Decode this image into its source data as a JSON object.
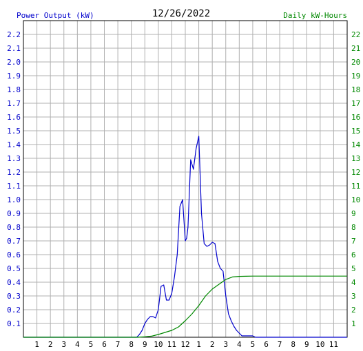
{
  "chart_data": {
    "type": "line",
    "title": "12/26/2022",
    "left_axis_label": "Power Output (kW)",
    "right_axis_label": "Daily kW-Hours",
    "x_tick_labels": [
      "1",
      "2",
      "3",
      "4",
      "5",
      "6",
      "7",
      "8",
      "9",
      "10",
      "11",
      "12",
      "1",
      "2",
      "3",
      "4",
      "5",
      "6",
      "7",
      "8",
      "9",
      "10",
      "11"
    ],
    "x_range_hours": [
      0,
      24
    ],
    "left_ticks": [
      "0.1",
      "0.2",
      "0.3",
      "0.4",
      "0.5",
      "0.6",
      "0.7",
      "0.8",
      "0.9",
      "1.0",
      "1.1",
      "1.2",
      "1.3",
      "1.4",
      "1.5",
      "1.6",
      "1.7",
      "1.8",
      "1.9",
      "2.0",
      "2.1",
      "2.2"
    ],
    "left_range": [
      0,
      2.3
    ],
    "right_ticks": [
      "1",
      "2",
      "3",
      "4",
      "5",
      "6",
      "7",
      "8",
      "9",
      "10",
      "11",
      "12",
      "13",
      "14",
      "15",
      "16",
      "17",
      "18",
      "19",
      "20",
      "21",
      "22"
    ],
    "right_range": [
      0,
      23
    ],
    "grid": true,
    "colors": {
      "power": "#0000cc",
      "energy": "#008800",
      "left_axis": "#0000cc",
      "right_axis": "#008800",
      "grid": "#b0b0b0"
    },
    "series": [
      {
        "name": "Power Output (kW)",
        "axis": "left",
        "x": [
          0,
          8.4,
          8.6,
          8.8,
          9.0,
          9.2,
          9.4,
          9.6,
          9.8,
          10.0,
          10.2,
          10.4,
          10.6,
          10.8,
          11.0,
          11.2,
          11.4,
          11.6,
          11.8,
          12.0,
          12.1,
          12.2,
          12.4,
          12.6,
          12.8,
          13.0,
          13.2,
          13.4,
          13.5,
          13.6,
          13.8,
          14.0,
          14.2,
          14.4,
          14.6,
          14.8,
          15.0,
          15.2,
          15.4,
          15.6,
          15.8,
          16.0,
          16.2,
          16.4,
          16.6,
          16.8,
          17.0,
          17.2,
          17.4,
          18.0,
          24
        ],
        "y": [
          0,
          0,
          0.02,
          0.05,
          0.1,
          0.13,
          0.15,
          0.15,
          0.14,
          0.2,
          0.37,
          0.38,
          0.27,
          0.27,
          0.32,
          0.44,
          0.6,
          0.95,
          1.0,
          0.7,
          0.72,
          0.8,
          1.29,
          1.22,
          1.37,
          1.46,
          0.9,
          0.68,
          0.67,
          0.66,
          0.67,
          0.69,
          0.68,
          0.55,
          0.5,
          0.48,
          0.3,
          0.17,
          0.12,
          0.08,
          0.05,
          0.03,
          0.01,
          0.01,
          0.01,
          0.01,
          0.01,
          0,
          0,
          0,
          0
        ]
      },
      {
        "name": "Daily kW-Hours",
        "axis": "right",
        "x": [
          0,
          8.5,
          9.0,
          9.5,
          10.0,
          10.5,
          11.0,
          11.5,
          12.0,
          12.5,
          13.0,
          13.5,
          14.0,
          14.5,
          15.0,
          15.5,
          16.0,
          16.5,
          17.0,
          18.0,
          20.0,
          22.0,
          24.0
        ],
        "y": [
          0,
          0,
          0.03,
          0.08,
          0.2,
          0.35,
          0.5,
          0.75,
          1.2,
          1.7,
          2.3,
          3.0,
          3.5,
          3.85,
          4.2,
          4.38,
          4.42,
          4.43,
          4.44,
          4.44,
          4.44,
          4.44,
          4.44
        ]
      }
    ]
  }
}
